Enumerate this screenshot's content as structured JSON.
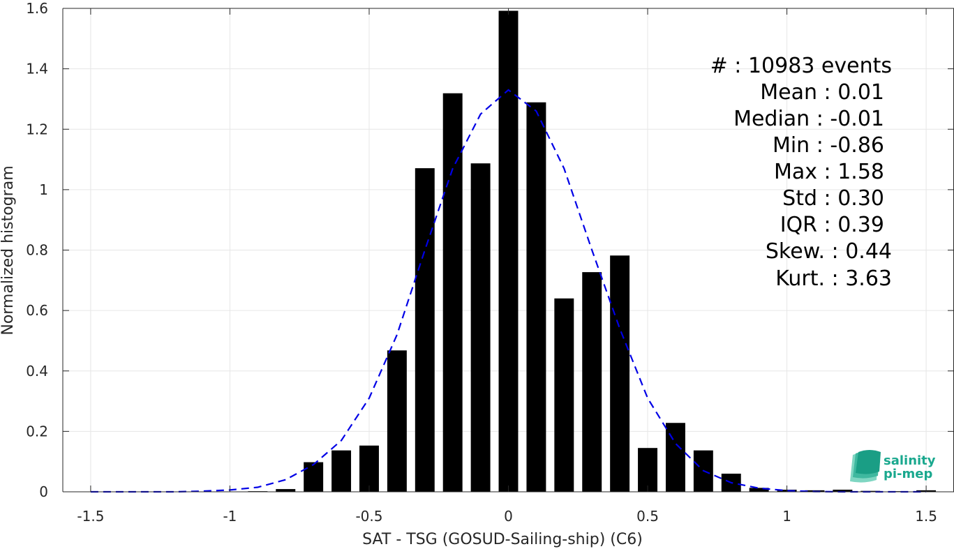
{
  "chart_data": {
    "type": "bar",
    "xlabel": "SAT - TSG (GOSUD-Sailing-ship) (C6)",
    "ylabel": "Normalized histogram",
    "xlim": [
      -1.6,
      1.6
    ],
    "ylim": [
      0,
      1.6
    ],
    "xticks": [
      -1.5,
      -1,
      -0.5,
      0,
      0.5,
      1,
      1.5
    ],
    "xtick_labels": [
      "-1.5",
      "-1",
      "-0.5",
      "0",
      "0.5",
      "1",
      "1.5"
    ],
    "yticks": [
      0,
      0.2,
      0.4,
      0.6,
      0.8,
      1,
      1.2,
      1.4,
      1.6
    ],
    "ytick_labels": [
      "0",
      "0.2",
      "0.4",
      "0.6",
      "0.8",
      "1",
      "1.2",
      "1.4",
      "1.6"
    ],
    "grid": true,
    "bar_color": "#000000",
    "bar_width": 0.07,
    "bars": [
      {
        "x": -0.9,
        "y": 0.002
      },
      {
        "x": -0.8,
        "y": 0.009
      },
      {
        "x": -0.7,
        "y": 0.098
      },
      {
        "x": -0.6,
        "y": 0.137
      },
      {
        "x": -0.5,
        "y": 0.153
      },
      {
        "x": -0.4,
        "y": 0.468
      },
      {
        "x": -0.3,
        "y": 1.071
      },
      {
        "x": -0.2,
        "y": 1.319
      },
      {
        "x": -0.1,
        "y": 1.087
      },
      {
        "x": 0.0,
        "y": 1.592
      },
      {
        "x": 0.1,
        "y": 1.289
      },
      {
        "x": 0.2,
        "y": 0.64
      },
      {
        "x": 0.3,
        "y": 0.727
      },
      {
        "x": 0.4,
        "y": 0.782
      },
      {
        "x": 0.5,
        "y": 0.145
      },
      {
        "x": 0.6,
        "y": 0.228
      },
      {
        "x": 0.7,
        "y": 0.137
      },
      {
        "x": 0.8,
        "y": 0.06
      },
      {
        "x": 0.9,
        "y": 0.013
      },
      {
        "x": 1.0,
        "y": 0.007
      },
      {
        "x": 1.1,
        "y": 0.005
      },
      {
        "x": 1.2,
        "y": 0.007
      },
      {
        "x": 1.3,
        "y": 0.003
      },
      {
        "x": 1.4,
        "y": 0.002
      },
      {
        "x": 1.5,
        "y": 0.005
      }
    ],
    "fit_curve": {
      "color": "#0000e6",
      "style": "dashed",
      "x": [
        -1.5,
        -1.4,
        -1.3,
        -1.2,
        -1.1,
        -1.0,
        -0.9,
        -0.8,
        -0.7,
        -0.6,
        -0.5,
        -0.4,
        -0.3,
        -0.2,
        -0.1,
        0.0,
        0.1,
        0.2,
        0.3,
        0.4,
        0.5,
        0.6,
        0.7,
        0.8,
        0.9,
        1.0,
        1.1,
        1.2,
        1.3,
        1.4,
        1.5
      ],
      "y": [
        0.0,
        0.0,
        0.0,
        0.0,
        0.002,
        0.006,
        0.015,
        0.04,
        0.09,
        0.17,
        0.31,
        0.52,
        0.8,
        1.07,
        1.25,
        1.33,
        1.26,
        1.07,
        0.8,
        0.54,
        0.31,
        0.16,
        0.07,
        0.03,
        0.012,
        0.004,
        0.001,
        0.0,
        0.0,
        0.0,
        0.0
      ]
    }
  },
  "stats": [
    {
      "label": "#  : 10983 events"
    },
    {
      "label": "Mean : 0.01"
    },
    {
      "label": "Median : -0.01"
    },
    {
      "label": "Min : -0.86"
    },
    {
      "label": "Max : 1.58"
    },
    {
      "label": "Std : 0.30"
    },
    {
      "label": "IQR : 0.39"
    },
    {
      "label": "Skew. : 0.44"
    },
    {
      "label": "Kurt. : 3.63"
    }
  ],
  "logo": {
    "line1": "salinity",
    "line2": "pi-mep",
    "color": "#1aa88e"
  }
}
